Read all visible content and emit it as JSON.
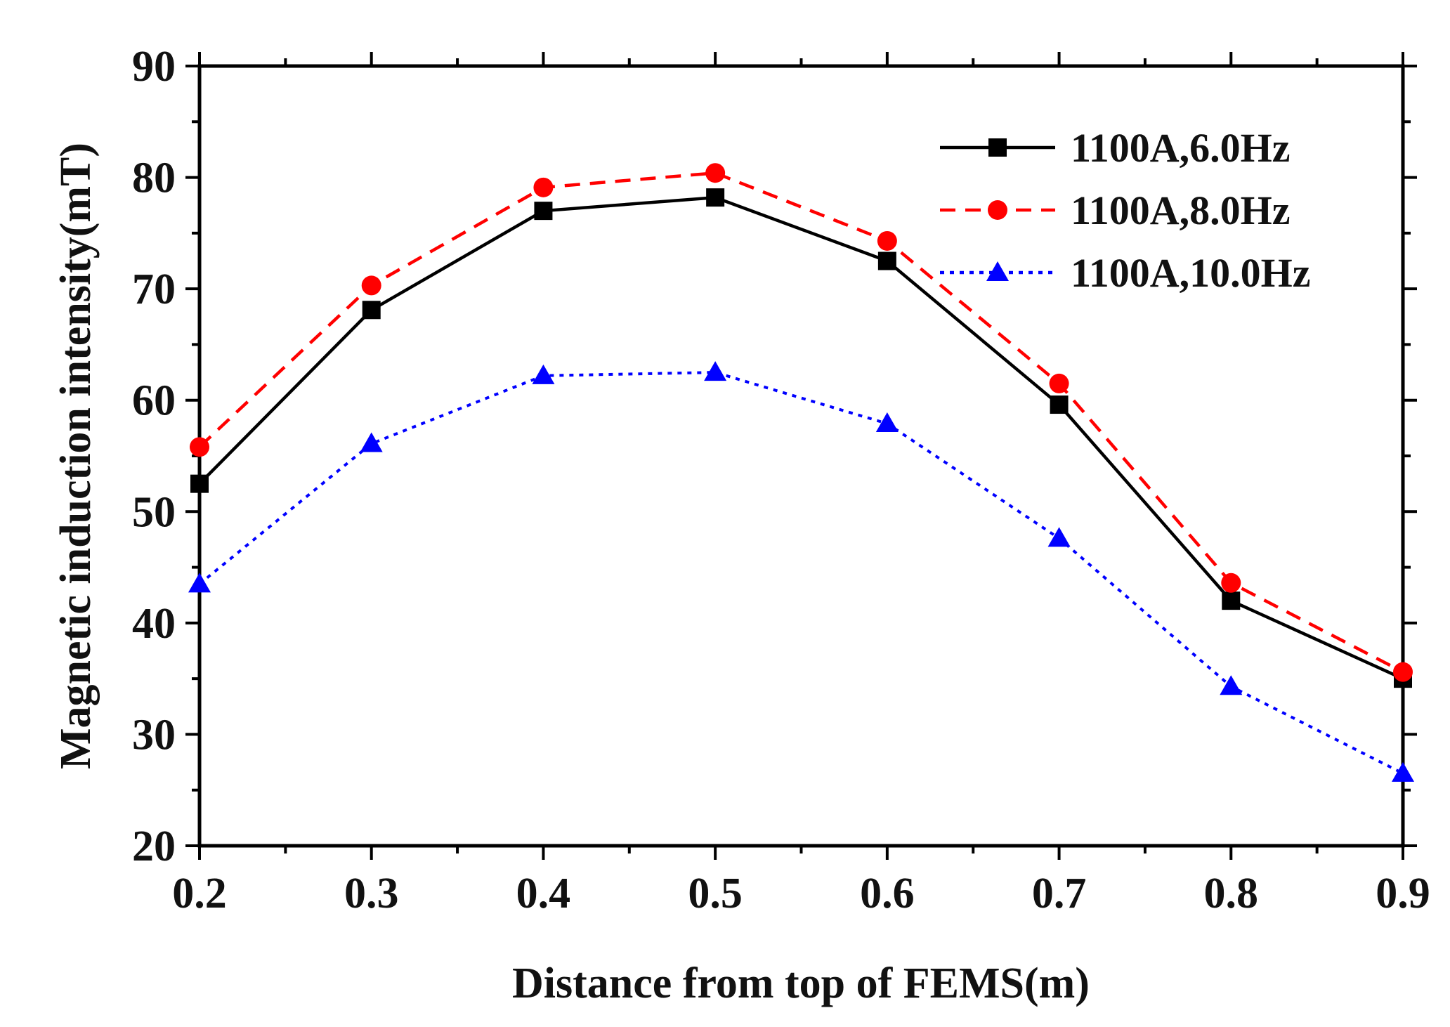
{
  "chart_data": {
    "type": "line",
    "title": "",
    "xlabel": "Distance from top of FEMS(m)",
    "ylabel": "Magnetic induction intensity(mT)",
    "xlim": [
      0.2,
      0.9
    ],
    "ylim": [
      20,
      90
    ],
    "xticks": [
      0.2,
      0.3,
      0.4,
      0.5,
      0.6,
      0.7,
      0.8,
      0.9
    ],
    "xtick_labels": [
      "0.2",
      "0.3",
      "0.4",
      "0.5",
      "0.6",
      "0.7",
      "0.8",
      "0.9"
    ],
    "yticks": [
      20,
      30,
      40,
      50,
      60,
      70,
      80,
      90
    ],
    "ytick_labels": [
      "20",
      "30",
      "40",
      "50",
      "60",
      "70",
      "80",
      "90"
    ],
    "grid": false,
    "legend_position": "top-right",
    "x": [
      0.2,
      0.3,
      0.4,
      0.5,
      0.6,
      0.7,
      0.8,
      0.9
    ],
    "series": [
      {
        "name": "1100A,6.0Hz",
        "values": [
          52.5,
          68.1,
          77.0,
          78.2,
          72.5,
          59.6,
          42.0,
          35.0
        ],
        "color": "#000000",
        "line_style": "solid",
        "marker": "square"
      },
      {
        "name": "1100A,8.0Hz",
        "values": [
          55.8,
          70.3,
          79.1,
          80.4,
          74.3,
          61.5,
          43.6,
          35.6
        ],
        "color": "#ff0000",
        "line_style": "dashed",
        "marker": "circle"
      },
      {
        "name": "1100A,10.0Hz",
        "values": [
          43.5,
          56.1,
          62.2,
          62.5,
          57.9,
          47.6,
          34.3,
          26.5
        ],
        "color": "#0000ff",
        "line_style": "dotted",
        "marker": "triangle"
      }
    ]
  }
}
